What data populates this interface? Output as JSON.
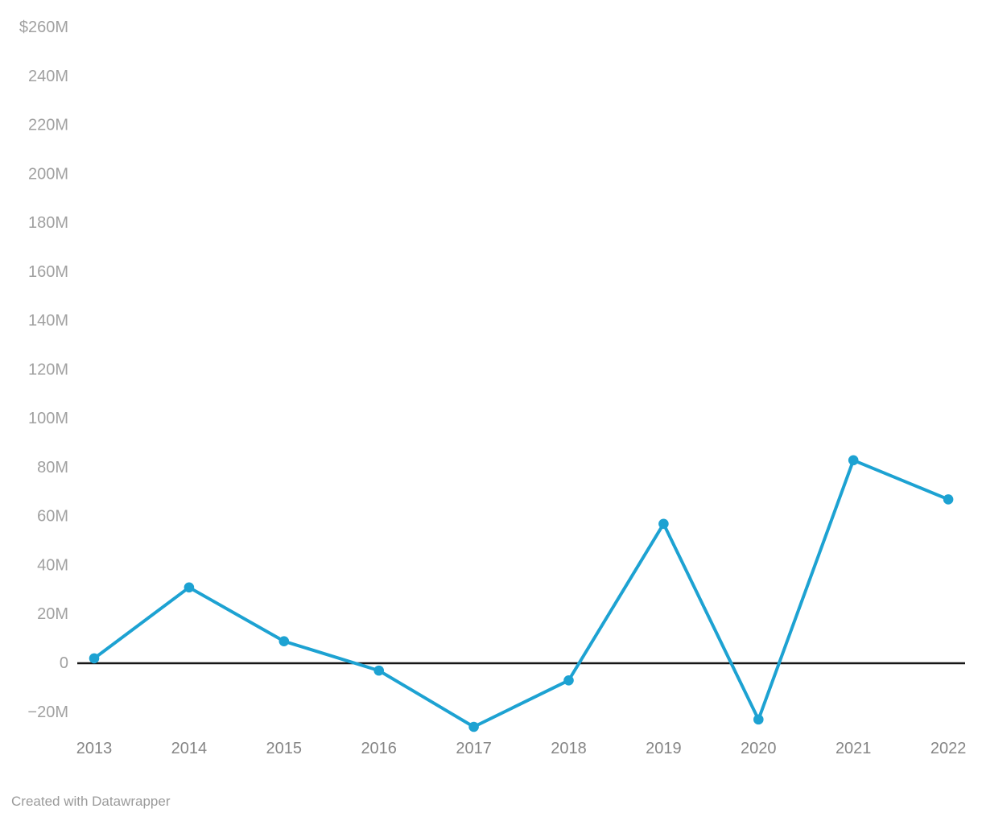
{
  "chart_data": {
    "type": "line",
    "title": "",
    "xlabel": "",
    "ylabel": "",
    "x": [
      2013,
      2014,
      2015,
      2016,
      2017,
      2018,
      2019,
      2020,
      2021,
      2022
    ],
    "values": [
      2,
      31,
      9,
      -3,
      -26,
      -7,
      57,
      -23,
      83,
      67
    ],
    "unit": "M (USD)",
    "ylim": [
      -40,
      260
    ],
    "grid": false,
    "zero_baseline": true,
    "legend": "none",
    "y_ticks": [
      {
        "value": 260,
        "label": "$260M"
      },
      {
        "value": 240,
        "label": "240M"
      },
      {
        "value": 220,
        "label": "220M"
      },
      {
        "value": 200,
        "label": "200M"
      },
      {
        "value": 180,
        "label": "180M"
      },
      {
        "value": 160,
        "label": "160M"
      },
      {
        "value": 140,
        "label": "140M"
      },
      {
        "value": 120,
        "label": "120M"
      },
      {
        "value": 100,
        "label": "100M"
      },
      {
        "value": 80,
        "label": "80M"
      },
      {
        "value": 60,
        "label": "60M"
      },
      {
        "value": 40,
        "label": "40M"
      },
      {
        "value": 20,
        "label": "20M"
      },
      {
        "value": 0,
        "label": "0"
      },
      {
        "value": -20,
        "label": "−20M"
      }
    ],
    "colors": {
      "line": "#1da2d2",
      "point": "#1da2d2",
      "zero_line": "#161616",
      "y_tick_text": "#a0a0a0",
      "x_tick_text": "#868686",
      "background": "#ffffff"
    }
  },
  "footer": {
    "credit": "Created with Datawrapper"
  }
}
